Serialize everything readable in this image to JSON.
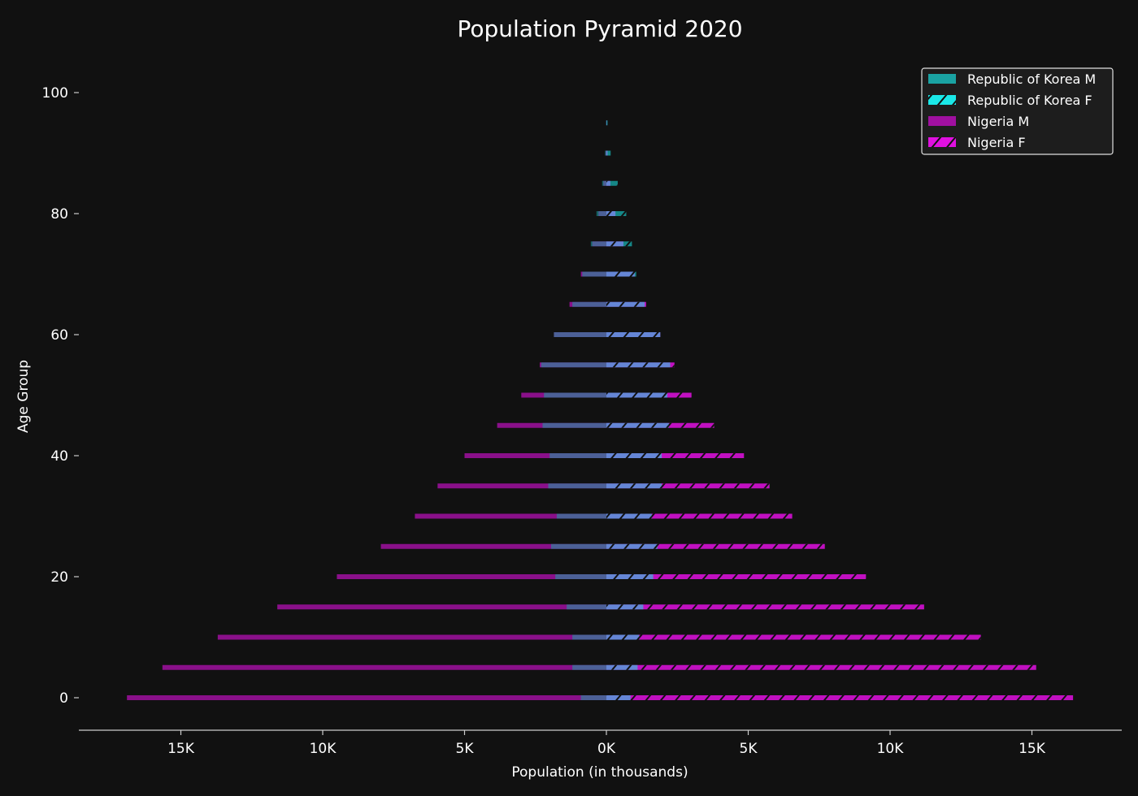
{
  "chart_data": {
    "type": "bar",
    "orientation": "horizontal",
    "title": "Population Pyramid 2020",
    "xlabel": "Population (in thousands)",
    "ylabel": "Age Group",
    "xlim": [
      -18500,
      18000
    ],
    "ylim": [
      -5.5,
      105
    ],
    "x_ticks": [
      -15000,
      -10000,
      -5000,
      0,
      5000,
      10000,
      15000
    ],
    "x_tick_labels": [
      "15K",
      "10K",
      "5K",
      "0K",
      "5K",
      "10K",
      "15K"
    ],
    "y_ticks": [
      0,
      20,
      40,
      60,
      80,
      100
    ],
    "y_tick_labels": [
      "0",
      "20",
      "40",
      "60",
      "80",
      "100"
    ],
    "age_groups": [
      0,
      5,
      10,
      15,
      20,
      25,
      30,
      35,
      40,
      45,
      50,
      55,
      60,
      65,
      70,
      75,
      80,
      85,
      90,
      95
    ],
    "legend_position": "top-right",
    "grid": false,
    "series": [
      {
        "name": "Republic of Korea M",
        "color": "#1aa3a3",
        "side": "left",
        "hatch": false,
        "values": [
          900,
          1200,
          1200,
          1400,
          1800,
          1950,
          1750,
          2050,
          2000,
          2250,
          2200,
          2300,
          1850,
          1200,
          850,
          550,
          350,
          150,
          50,
          10
        ]
      },
      {
        "name": "Republic of Korea F",
        "color": "#1ae8e8",
        "side": "right",
        "hatch": true,
        "values": [
          850,
          1100,
          1150,
          1300,
          1650,
          1800,
          1600,
          1950,
          1950,
          2200,
          2150,
          2250,
          1900,
          1350,
          1050,
          900,
          700,
          400,
          150,
          40
        ]
      },
      {
        "name": "Nigeria M",
        "color": "#a010a0",
        "side": "left",
        "hatch": false,
        "values": [
          16900,
          15650,
          13700,
          11600,
          9500,
          7950,
          6750,
          5950,
          5000,
          3850,
          3000,
          2350,
          1850,
          1300,
          900,
          500,
          280,
          110,
          30,
          5
        ]
      },
      {
        "name": "Nigeria F",
        "color": "#e010e0",
        "side": "right",
        "hatch": true,
        "values": [
          16450,
          15150,
          13200,
          11200,
          9150,
          7700,
          6550,
          5750,
          4850,
          3800,
          3000,
          2400,
          1900,
          1400,
          1000,
          600,
          320,
          140,
          40,
          8
        ]
      }
    ]
  }
}
